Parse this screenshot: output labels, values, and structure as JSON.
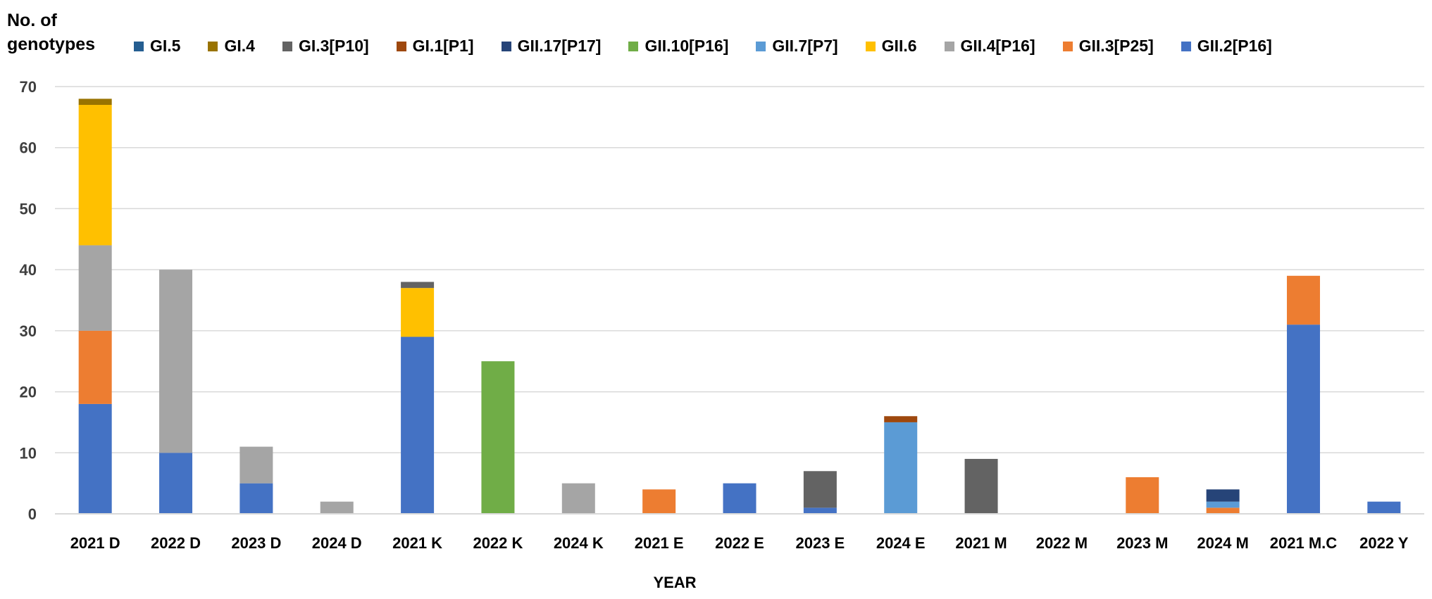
{
  "chart_data": {
    "type": "bar",
    "stacked": true,
    "title": "",
    "legend_title": "No. of\ngenotypes",
    "xlabel": "YEAR",
    "ylabel": "",
    "ylim": [
      0,
      70
    ],
    "yticks": [
      0,
      10,
      20,
      30,
      40,
      50,
      60,
      70
    ],
    "grid": true,
    "legend_position": "top",
    "categories": [
      "2021 D",
      "2022 D",
      "2023 D",
      "2024 D",
      "2021 K",
      "2022 K",
      "2024 K",
      "2021 E",
      "2022 E",
      "2023 E",
      "2024 E",
      "2021 M",
      "2022 M",
      "2023 M",
      "2024 M",
      "2021 M.C",
      "2022 Y"
    ],
    "series": [
      {
        "name": "GII.2[P16]",
        "color": "#4472C4",
        "values": [
          18,
          10,
          5,
          0,
          29,
          0,
          0,
          0,
          5,
          1,
          0,
          0,
          0,
          0,
          0,
          31,
          2
        ]
      },
      {
        "name": "GII.3[P25]",
        "color": "#ED7D31",
        "values": [
          12,
          0,
          0,
          0,
          0,
          0,
          0,
          4,
          0,
          0,
          0,
          0,
          0,
          6,
          1,
          8,
          0
        ]
      },
      {
        "name": "GII.4[P16]",
        "color": "#A5A5A5",
        "values": [
          14,
          30,
          6,
          2,
          0,
          0,
          5,
          0,
          0,
          0,
          0,
          0,
          0,
          0,
          0,
          0,
          0
        ]
      },
      {
        "name": "GII.6",
        "color": "#FFC000",
        "values": [
          23,
          0,
          0,
          0,
          8,
          0,
          0,
          0,
          0,
          0,
          0,
          0,
          0,
          0,
          0,
          0,
          0
        ]
      },
      {
        "name": "GII.7[P7]",
        "color": "#5B9BD5",
        "values": [
          0,
          0,
          0,
          0,
          0,
          0,
          0,
          0,
          0,
          0,
          15,
          0,
          0,
          0,
          1,
          0,
          0
        ]
      },
      {
        "name": "GII.10[P16]",
        "color": "#70AD47",
        "values": [
          0,
          0,
          0,
          0,
          0,
          25,
          0,
          0,
          0,
          0,
          0,
          0,
          0,
          0,
          0,
          0,
          0
        ]
      },
      {
        "name": "GII.17[P17]",
        "color": "#264478",
        "values": [
          0,
          0,
          0,
          0,
          0,
          0,
          0,
          0,
          0,
          0,
          0,
          0,
          0,
          0,
          2,
          0,
          0
        ]
      },
      {
        "name": "GI.1[P1]",
        "color": "#9E480E",
        "values": [
          0,
          0,
          0,
          0,
          0,
          0,
          0,
          0,
          0,
          0,
          1,
          0,
          0,
          0,
          0,
          0,
          0
        ]
      },
      {
        "name": "GI.3[P10]",
        "color": "#636363",
        "values": [
          0,
          0,
          0,
          0,
          1,
          0,
          0,
          0,
          0,
          6,
          0,
          9,
          0,
          0,
          0,
          0,
          0
        ]
      },
      {
        "name": "GI.4",
        "color": "#997300",
        "values": [
          1,
          0,
          0,
          0,
          0,
          0,
          0,
          0,
          0,
          0,
          0,
          0,
          0,
          0,
          0,
          0,
          0
        ]
      },
      {
        "name": "GI.5",
        "color": "#255E91",
        "values": [
          0,
          0,
          0,
          0,
          0,
          0,
          0,
          0,
          0,
          0,
          0,
          0,
          0,
          0,
          0,
          0,
          0
        ]
      }
    ],
    "legend_order": [
      "GI.5",
      "GI.4",
      "GI.3[P10]",
      "GI.1[P1]",
      "GII.17[P17]",
      "GII.10[P16]",
      "GII.7[P7]",
      "GII.6",
      "GII.4[P16]",
      "GII.3[P25]",
      "GII.2[P16]"
    ]
  }
}
